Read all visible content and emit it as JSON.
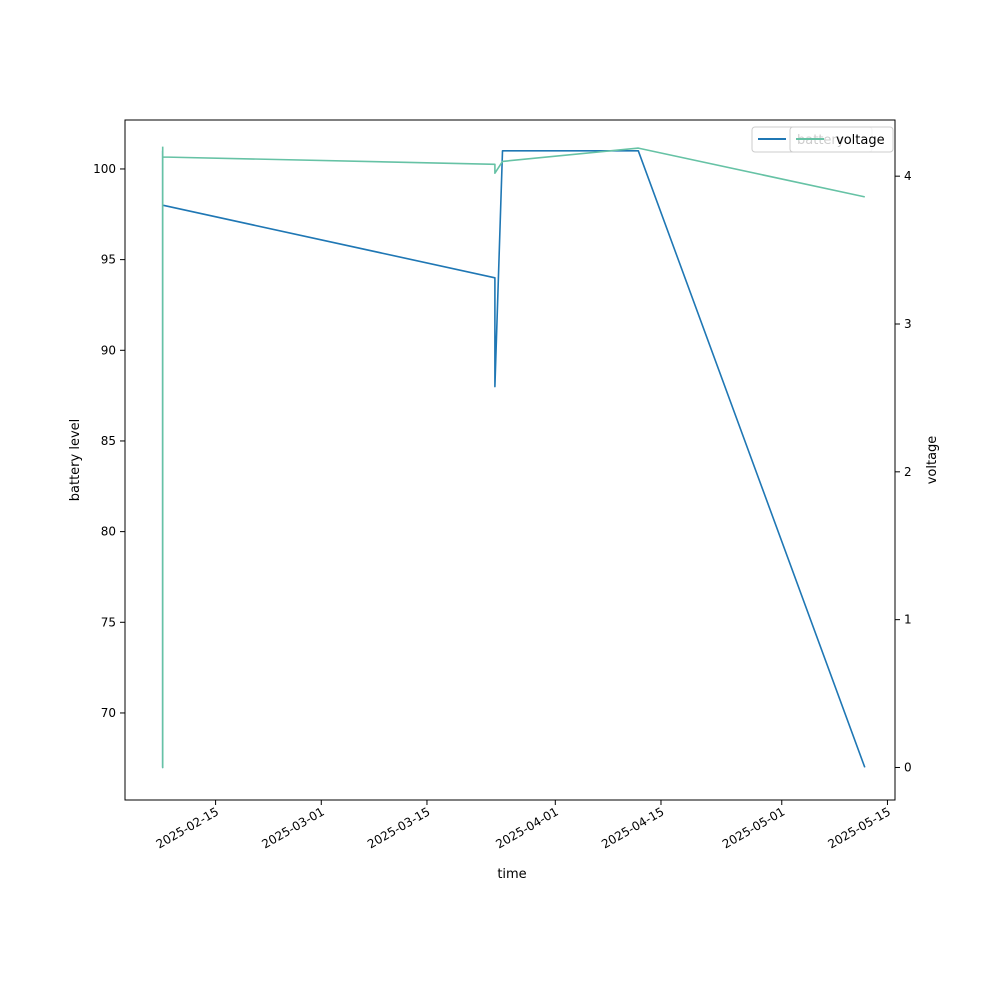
{
  "chart_data": {
    "type": "line",
    "title": "",
    "xlabel": "time",
    "ylabel": "battery level",
    "y2label": "voltage",
    "x_tick_labels": [
      "2025-02-15",
      "2025-03-01",
      "2025-03-15",
      "2025-04-01",
      "2025-04-15",
      "2025-05-01",
      "2025-05-15"
    ],
    "x_tick_dates": [
      "2025-02-15",
      "2025-03-01",
      "2025-03-15",
      "2025-04-01",
      "2025-04-15",
      "2025-05-01",
      "2025-05-15"
    ],
    "xlim": [
      "2025-02-03",
      "2025-05-16"
    ],
    "ylim": [
      65.2,
      102.7
    ],
    "y_ticks": [
      70,
      75,
      80,
      85,
      90,
      95,
      100
    ],
    "y2lim": [
      -0.22,
      4.38
    ],
    "y2_ticks": [
      0,
      1,
      2,
      3,
      4
    ],
    "grid": false,
    "legend_placement": "top-right",
    "series": [
      {
        "name": "battery",
        "axis": "left",
        "color": "#1f77b4",
        "points": [
          {
            "x": "2025-02-08",
            "y": 101
          },
          {
            "x": "2025-02-08",
            "y": 67
          },
          {
            "x": "2025-02-08",
            "y": 99
          },
          {
            "x": "2025-02-08",
            "y": 98
          },
          {
            "x": "2025-03-24",
            "y": 94
          },
          {
            "x": "2025-03-24",
            "y": 88
          },
          {
            "x": "2025-03-25",
            "y": 101
          },
          {
            "x": "2025-04-12",
            "y": 101
          },
          {
            "x": "2025-05-12",
            "y": 67
          }
        ]
      },
      {
        "name": "voltage",
        "axis": "right",
        "color": "#66c2a5",
        "points": [
          {
            "x": "2025-02-08",
            "y": 4.2
          },
          {
            "x": "2025-02-08",
            "y": 0.0
          },
          {
            "x": "2025-02-08",
            "y": 4.13
          },
          {
            "x": "2025-03-24",
            "y": 4.08
          },
          {
            "x": "2025-03-24",
            "y": 4.02
          },
          {
            "x": "2025-03-25",
            "y": 4.1
          },
          {
            "x": "2025-04-12",
            "y": 4.19
          },
          {
            "x": "2025-05-12",
            "y": 3.86
          }
        ]
      }
    ],
    "legend_left": [
      "battery"
    ],
    "legend_right": [
      "voltage"
    ]
  }
}
